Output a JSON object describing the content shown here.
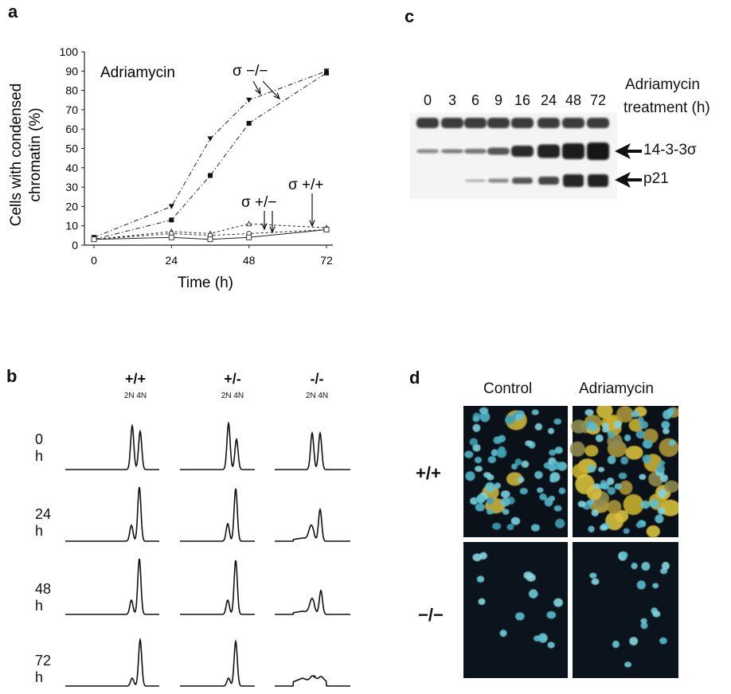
{
  "figure": {
    "panels": {
      "a": "a",
      "b": "b",
      "c": "c",
      "d": "d"
    }
  },
  "panel_a": {
    "annotation": "Adriamycin",
    "series_labels": {
      "neg_neg": "σ −/−",
      "pos_neg": "σ +/−",
      "pos_pos": "σ +/+"
    }
  },
  "chart_data": {
    "type": "line",
    "xlabel": "Time (h)",
    "ylabel": "Cells with condensed chromatin (%)",
    "xlim": [
      0,
      72
    ],
    "ylim": [
      0,
      100
    ],
    "xticks": [
      0,
      24,
      48,
      72
    ],
    "yticks": [
      0,
      10,
      20,
      30,
      40,
      50,
      60,
      70,
      80,
      90,
      100
    ],
    "series": [
      {
        "marker": "triangle-down-filled",
        "line": "dash-dot",
        "x": [
          0,
          24,
          36,
          48,
          72
        ],
        "y": [
          4,
          20,
          55,
          75,
          90
        ]
      },
      {
        "marker": "square-filled",
        "line": "dash-dot",
        "x": [
          0,
          24,
          36,
          48,
          72
        ],
        "y": [
          3,
          13,
          36,
          63,
          89
        ]
      },
      {
        "marker": "triangle-open",
        "line": "dashed",
        "x": [
          0,
          24,
          36,
          48,
          72
        ],
        "y": [
          3,
          7,
          6,
          11,
          9
        ]
      },
      {
        "marker": "circle-open",
        "line": "dashed",
        "x": [
          0,
          24,
          36,
          48,
          72
        ],
        "y": [
          3,
          6,
          5,
          6,
          8
        ]
      },
      {
        "marker": "square-open",
        "line": "solid",
        "x": [
          0,
          24,
          36,
          48,
          72
        ],
        "y": [
          3,
          4,
          3,
          4,
          8
        ]
      }
    ]
  },
  "panel_b": {
    "genotypes": [
      {
        "label": "+/+",
        "sub": "2N 4N"
      },
      {
        "label": "+/-",
        "sub": "2N 4N"
      },
      {
        "label": "-/-",
        "sub": "2N 4N"
      }
    ],
    "times": [
      "0 h",
      "24 h",
      "48 h",
      "72 h"
    ]
  },
  "panel_c": {
    "header_line1": "Adriamycin",
    "header_line2": "treatment (h)",
    "lanes": [
      "0",
      "3",
      "6",
      "9",
      "16",
      "24",
      "48",
      "72"
    ],
    "bands": [
      "14-3-3σ",
      "p21"
    ]
  },
  "panel_d": {
    "columns": [
      "Control",
      "Adriamycin"
    ],
    "rows": [
      "+/+",
      "−/−"
    ]
  }
}
